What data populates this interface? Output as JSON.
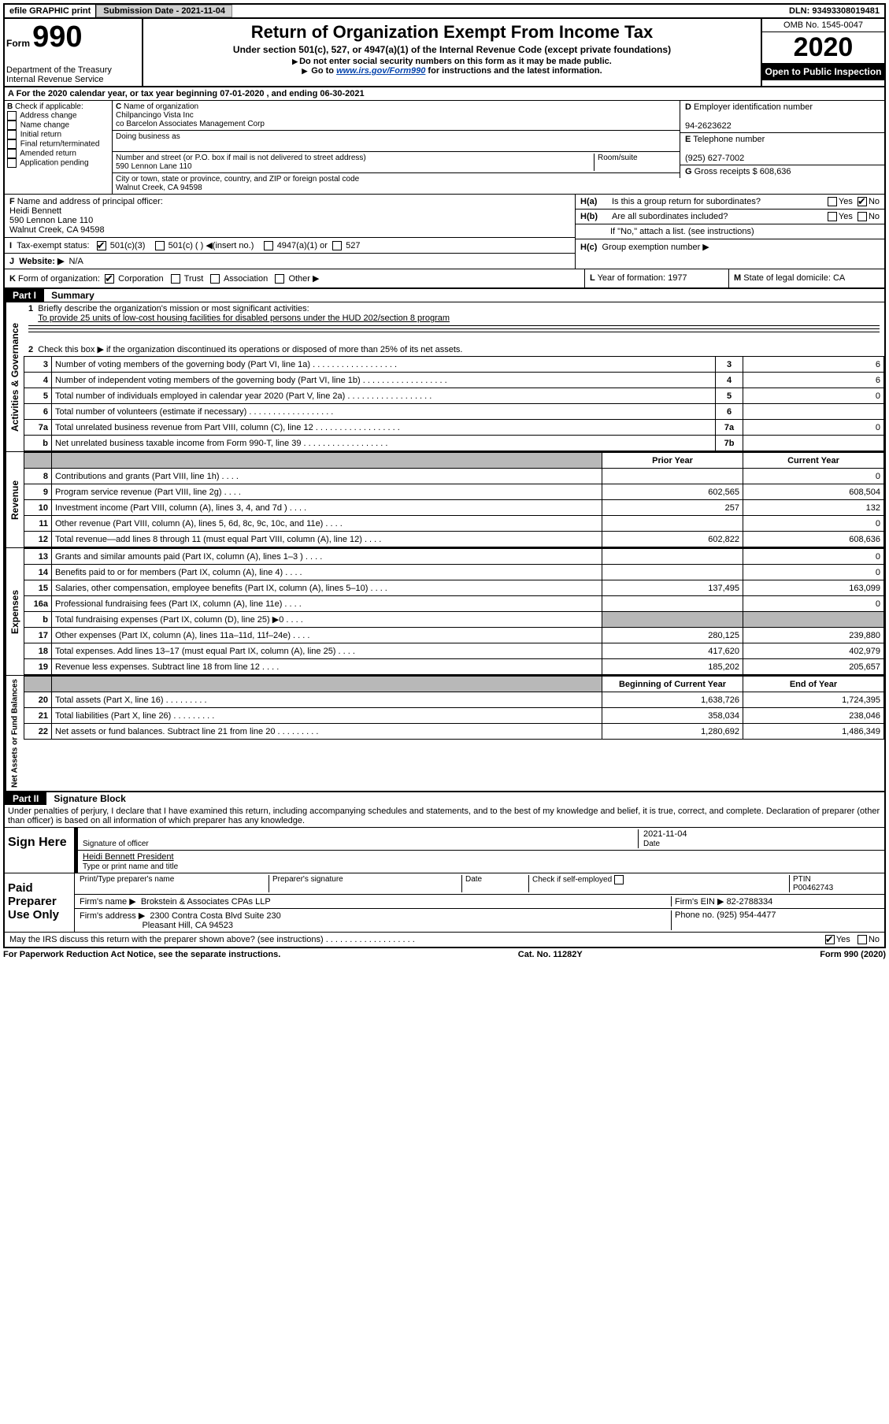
{
  "top_bar": {
    "efile_label": "efile GRAPHIC print",
    "submission_label": "Submission Date - 2021-11-04",
    "dln_label": "DLN: 93493308019481"
  },
  "header": {
    "form_label": "Form",
    "form_number": "990",
    "department": "Department of the Treasury",
    "irs": "Internal Revenue Service",
    "title": "Return of Organization Exempt From Income Tax",
    "subtitle": "Under section 501(c), 527, or 4947(a)(1) of the Internal Revenue Code (except private foundations)",
    "note1": "Do not enter social security numbers on this form as it may be made public.",
    "note2_pre": "Go to ",
    "note2_link": "www.irs.gov/Form990",
    "note2_post": " for instructions and the latest information.",
    "omb": "OMB No. 1545-0047",
    "year": "2020",
    "open_inspect": "Open to Public Inspection"
  },
  "period": {
    "text": "For the 2020 calendar year, or tax year beginning 07-01-2020     , and ending 06-30-2021"
  },
  "section_b": {
    "header": "Check if applicable:",
    "items": [
      "Address change",
      "Name change",
      "Initial return",
      "Final return/terminated",
      "Amended return",
      "Application pending"
    ],
    "all_checked": false
  },
  "section_c": {
    "name_label": "Name of organization",
    "name1": "Chilpancingo Vista Inc",
    "name2": "co Barcelon Associates Management Corp",
    "dba_label": "Doing business as",
    "dba": "",
    "street_label": "Number and street (or P.O. box if mail is not delivered to street address)",
    "room_label": "Room/suite",
    "street": "590 Lennon Lane 110",
    "city_label": "City or town, state or province, country, and ZIP or foreign postal code",
    "city": "Walnut Creek, CA  94598"
  },
  "section_de": {
    "d_label": "Employer identification number",
    "ein": "94-2623622",
    "e_label": "Telephone number",
    "phone": "(925) 627-7002",
    "g_label": "Gross receipts $",
    "g_value": "608,636"
  },
  "section_f": {
    "label": "Name and address of principal officer:",
    "name": "Heidi Bennett",
    "addr1": "590 Lennon Lane 110",
    "addr2": "Walnut Creek, CA  94598"
  },
  "section_h": {
    "a_label": "Is this a group return for subordinates?",
    "a_yes": false,
    "a_no": true,
    "b_label": "Are all subordinates included?",
    "b_yes": false,
    "b_no": false,
    "b_note": "If \"No,\" attach a list. (see instructions)",
    "c_label": "Group exemption number ▶"
  },
  "tax_status": {
    "label": "Tax-exempt status:",
    "c3_checked": true,
    "c3": "501(c)(3)",
    "c_other": "501(c) (   ) ◀(insert no.)",
    "s4947": "4947(a)(1) or",
    "s527": "527"
  },
  "website": {
    "label": "Website: ▶",
    "value": "N/A"
  },
  "section_k": {
    "label": "Form of organization:",
    "corp_checked": true,
    "items": [
      "Corporation",
      "Trust",
      "Association",
      "Other ▶"
    ],
    "l_label": "Year of formation:",
    "l_value": "1977",
    "m_label": "State of legal domicile:",
    "m_value": "CA"
  },
  "part1": {
    "header": "Part I",
    "title": "Summary",
    "q1_label": "Briefly describe the organization's mission or most significant activities:",
    "q1_value": "To provide 25 units of low-cost housing facilities for disabled persons under the HUD 202/section 8 program",
    "q2_label": "Check this box ▶           if the organization discontinued its operations or disposed of more than 25% of its net assets.",
    "governance_label": "Activities & Governance",
    "revenue_label": "Revenue",
    "expenses_label": "Expenses",
    "netassets_label": "Net Assets or Fund Balances",
    "gov_rows": [
      {
        "n": "3",
        "label": "Number of voting members of the governing body (Part VI, line 1a)",
        "box": "3",
        "val": "6"
      },
      {
        "n": "4",
        "label": "Number of independent voting members of the governing body (Part VI, line 1b)",
        "box": "4",
        "val": "6"
      },
      {
        "n": "5",
        "label": "Total number of individuals employed in calendar year 2020 (Part V, line 2a)",
        "box": "5",
        "val": "0"
      },
      {
        "n": "6",
        "label": "Total number of volunteers (estimate if necessary)",
        "box": "6",
        "val": ""
      },
      {
        "n": "7a",
        "label": "Total unrelated business revenue from Part VIII, column (C), line 12",
        "box": "7a",
        "val": "0"
      },
      {
        "n": "b",
        "label": "Net unrelated business taxable income from Form 990-T, line 39",
        "box": "7b",
        "val": ""
      }
    ],
    "rev_header_prior": "Prior Year",
    "rev_header_current": "Current Year",
    "rev_rows": [
      {
        "n": "8",
        "label": "Contributions and grants (Part VIII, line 1h)",
        "prior": "",
        "curr": "0"
      },
      {
        "n": "9",
        "label": "Program service revenue (Part VIII, line 2g)",
        "prior": "602,565",
        "curr": "608,504"
      },
      {
        "n": "10",
        "label": "Investment income (Part VIII, column (A), lines 3, 4, and 7d )",
        "prior": "257",
        "curr": "132"
      },
      {
        "n": "11",
        "label": "Other revenue (Part VIII, column (A), lines 5, 6d, 8c, 9c, 10c, and 11e)",
        "prior": "",
        "curr": "0"
      },
      {
        "n": "12",
        "label": "Total revenue—add lines 8 through 11 (must equal Part VIII, column (A), line 12)",
        "prior": "602,822",
        "curr": "608,636"
      }
    ],
    "exp_rows": [
      {
        "n": "13",
        "label": "Grants and similar amounts paid (Part IX, column (A), lines 1–3 )",
        "prior": "",
        "curr": "0"
      },
      {
        "n": "14",
        "label": "Benefits paid to or for members (Part IX, column (A), line 4)",
        "prior": "",
        "curr": "0"
      },
      {
        "n": "15",
        "label": "Salaries, other compensation, employee benefits (Part IX, column (A), lines 5–10)",
        "prior": "137,495",
        "curr": "163,099"
      },
      {
        "n": "16a",
        "label": "Professional fundraising fees (Part IX, column (A), line 11e)",
        "prior": "",
        "curr": "0"
      },
      {
        "n": "b",
        "label": "Total fundraising expenses (Part IX, column (D), line 25) ▶0",
        "prior": "shade",
        "curr": "shade"
      },
      {
        "n": "17",
        "label": "Other expenses (Part IX, column (A), lines 11a–11d, 11f–24e)",
        "prior": "280,125",
        "curr": "239,880"
      },
      {
        "n": "18",
        "label": "Total expenses. Add lines 13–17 (must equal Part IX, column (A), line 25)",
        "prior": "417,620",
        "curr": "402,979"
      },
      {
        "n": "19",
        "label": "Revenue less expenses. Subtract line 18 from line 12",
        "prior": "185,202",
        "curr": "205,657"
      }
    ],
    "na_header_begin": "Beginning of Current Year",
    "na_header_end": "End of Year",
    "na_rows": [
      {
        "n": "20",
        "label": "Total assets (Part X, line 16)",
        "begin": "1,638,726",
        "end": "1,724,395"
      },
      {
        "n": "21",
        "label": "Total liabilities (Part X, line 26)",
        "begin": "358,034",
        "end": "238,046"
      },
      {
        "n": "22",
        "label": "Net assets or fund balances. Subtract line 21 from line 20",
        "begin": "1,280,692",
        "end": "1,486,349"
      }
    ]
  },
  "part2": {
    "header": "Part II",
    "title": "Signature Block",
    "declaration": "Under penalties of perjury, I declare that I have examined this return, including accompanying schedules and statements, and to the best of my knowledge and belief, it is true, correct, and complete. Declaration of preparer (other than officer) is based on all information of which preparer has any knowledge.",
    "sign_here": "Sign Here",
    "sig_officer": "Signature of officer",
    "date_label": "Date",
    "date_value": "2021-11-04",
    "officer_name": "Heidi Bennett President",
    "type_label": "Type or print name and title",
    "paid_preparer": "Paid Preparer Use Only",
    "prep_name_label": "Print/Type preparer's name",
    "prep_sig_label": "Preparer's signature",
    "check_self": "Check          if self-employed",
    "ptin_label": "PTIN",
    "ptin": "P00462743",
    "firm_name_label": "Firm's name    ▶",
    "firm_name": "Brokstein & Associates CPAs LLP",
    "firm_ein_label": "Firm's EIN ▶",
    "firm_ein": "82-2788334",
    "firm_addr_label": "Firm's address ▶",
    "firm_addr1": "2300 Contra Costa Blvd Suite 230",
    "firm_addr2": "Pleasant Hill, CA  94523",
    "phone_label": "Phone no.",
    "phone": "(925) 954-4477",
    "discuss": "May the IRS discuss this return with the preparer shown above? (see instructions)",
    "discuss_yes": true,
    "discuss_no": false
  },
  "footer": {
    "left": "For Paperwork Reduction Act Notice, see the separate instructions.",
    "center": "Cat. No. 11282Y",
    "right": "Form 990 (2020)"
  }
}
